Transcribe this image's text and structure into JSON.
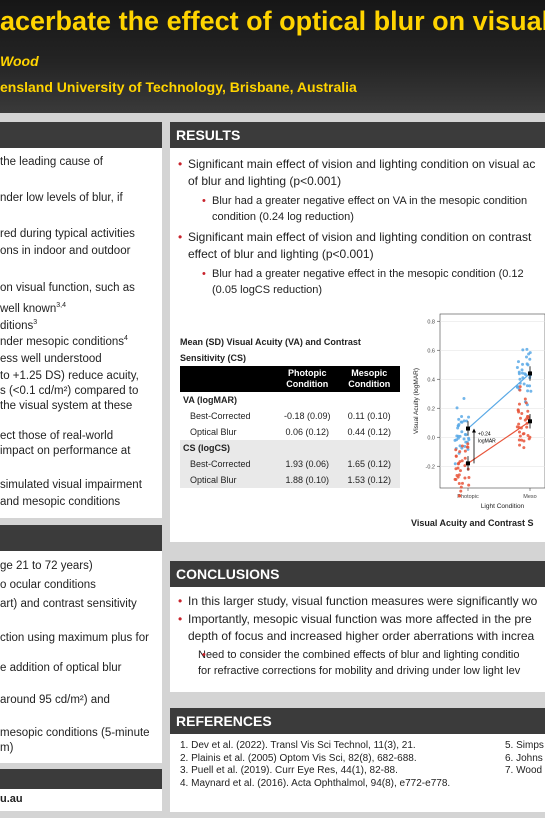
{
  "header": {
    "title": "acerbate the effect of optical blur on visual f",
    "authors": "Wood",
    "affiliation": "ensland University of Technology, Brisbane, Australia"
  },
  "intro": {
    "lines": [
      "the leading cause of",
      "nder low levels of blur, if",
      "red during typical activities",
      "ons in indoor and outdoor",
      "on visual function, such as",
      "well known",
      "ditions",
      "nder mesopic conditions",
      "ess well understood",
      "to +1.25 DS) reduce acuity,",
      "s (<0.1 cd/m²) compared to",
      "the visual system at these",
      "ect those of real-world",
      "impact on performance at",
      "simulated visual impairment",
      "and mesopic conditions"
    ]
  },
  "methods": {
    "lines": [
      "ge 21 to 72 years)",
      "o ocular conditions",
      "art) and contrast sensitivity",
      "ction using maximum plus for",
      "e addition of optical blur",
      "around 95 cd/m²) and",
      "mesopic conditions (5-minute",
      "m)"
    ]
  },
  "contact": {
    "email": "u.au"
  },
  "results": {
    "heading": "RESULTS",
    "bullets": [
      {
        "text": "Significant main effect of vision and lighting condition on visual ac",
        "cont": "of blur and lighting (p<0.001)"
      },
      {
        "sub": true,
        "text": "Blur had a greater negative effect on VA in the mesopic condition",
        "cont": "condition (0.24 log reduction)"
      },
      {
        "text": "Significant main effect of vision and lighting condition on contrast",
        "cont": "effect of blur and lighting (p<0.001)"
      },
      {
        "sub": true,
        "text": "Blur had a greater negative effect in the mesopic condition (0.12",
        "cont": "(0.05 logCS reduction)"
      }
    ],
    "table": {
      "caption": "Mean (SD) Visual Acuity (VA) and Contrast Sensitivity (CS)",
      "col1": "Photopic Condition",
      "col2": "Mesopic Condition",
      "groups": [
        {
          "name": "VA (logMAR)",
          "rows": [
            {
              "label": "Best-Corrected",
              "photopic": "-0.18 (0.09)",
              "mesopic": "0.11 (0.10)"
            },
            {
              "label": "Optical Blur",
              "photopic": "0.06 (0.12)",
              "mesopic": "0.44 (0.12)"
            }
          ]
        },
        {
          "name": "CS (logCS)",
          "rows": [
            {
              "label": "Best-Corrected",
              "photopic": "1.93 (0.06)",
              "mesopic": "1.65 (0.12)"
            },
            {
              "label": "Optical Blur",
              "photopic": "1.88 (0.10)",
              "mesopic": "1.53 (0.12)"
            }
          ]
        }
      ]
    },
    "figure_caption": "Visual Acuity and Contrast S"
  },
  "chart_data": {
    "type": "scatter",
    "title": "",
    "xlabel": "Light Condition",
    "ylabel": "Visual Acuity (logMAR)",
    "categories": [
      "Photopic",
      "Meso"
    ],
    "ylim": [
      -0.35,
      0.85
    ],
    "yticks": [
      "-0.2",
      "0.0",
      "0.2",
      "0.4",
      "0.6",
      "0.8"
    ],
    "ytick_values": [
      -0.2,
      0.0,
      0.2,
      0.4,
      0.6,
      0.8
    ],
    "annotation": "+0.24 logMAR",
    "series": [
      {
        "values": [
          0.06,
          0.44
        ],
        "color": "#5aa9e6"
      },
      {
        "values": [
          -0.18,
          0.11
        ],
        "color": "#e8553a"
      }
    ]
  },
  "conclusions": {
    "heading": "CONCLUSIONS",
    "bullets": [
      {
        "text": "In this larger study, visual function measures were significantly wo"
      },
      {
        "text": "Importantly, mesopic visual function was more affected in the pre",
        "cont": "depth of focus and increased higher order aberrations with increa"
      },
      {
        "sub": true,
        "text": "Need to consider the combined effects of blur and lighting conditio",
        "cont": "for refractive corrections for mobility and driving under low light lev"
      }
    ]
  },
  "references": {
    "heading": "REFERENCES",
    "left": [
      "1. Dev et al. (2022). Transl Vis Sci Technol, 11(3), 21.",
      "2. Plainis et al. (2005) Optom Vis Sci, 82(8), 682-688.",
      "3. Puell et al. (2019). Curr Eye Res, 44(1), 82-88.",
      "4. Maynard et al. (2016). Acta Ophthalmol, 94(8), e772-e778."
    ],
    "right": [
      "5. Simps",
      "6. Johns",
      "7. Wood"
    ]
  }
}
